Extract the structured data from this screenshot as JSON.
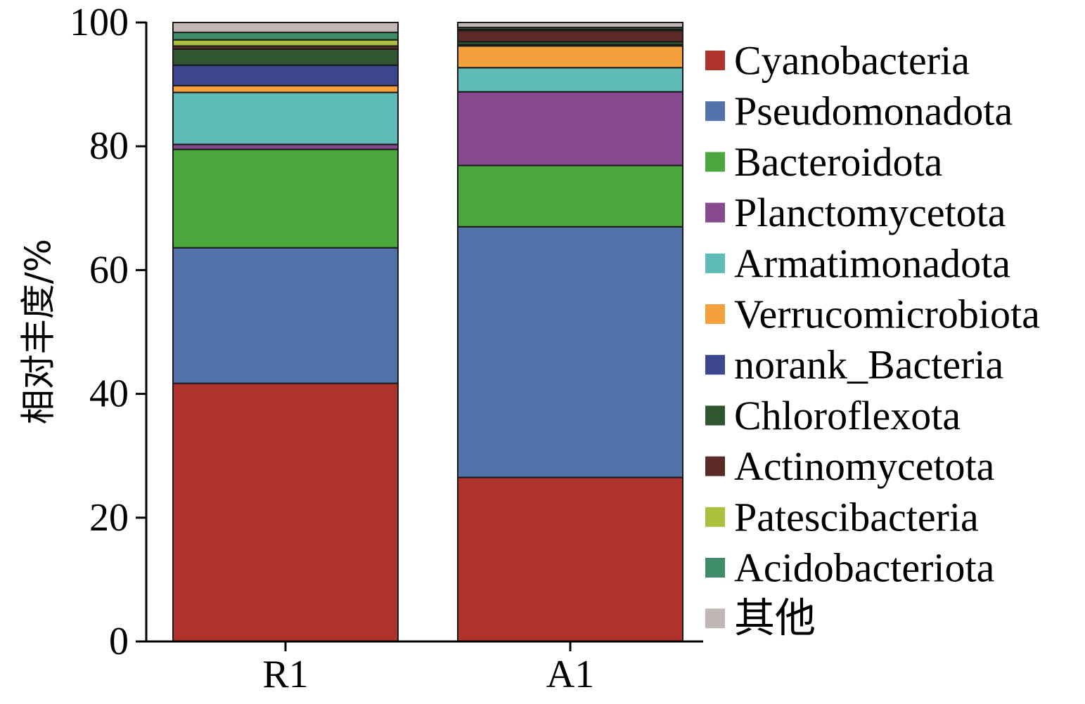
{
  "chart_data": {
    "type": "bar",
    "stacked": true,
    "title": "",
    "xlabel": "",
    "ylabel": "相对丰度/%",
    "ylim": [
      0,
      100
    ],
    "yticks": [
      0,
      20,
      40,
      60,
      80,
      100
    ],
    "categories": [
      "R1",
      "A1"
    ],
    "legend_position": "right",
    "series": [
      {
        "name": "Cyanobacteria",
        "color": "#b0322c",
        "values": [
          41.7,
          26.5
        ]
      },
      {
        "name": "Pseudomonadota",
        "color": "#5272aa",
        "values": [
          21.9,
          40.5
        ]
      },
      {
        "name": "Bacteroidota",
        "color": "#4ba63d",
        "values": [
          15.9,
          9.9
        ]
      },
      {
        "name": "Planctomycetota",
        "color": "#874a8f",
        "values": [
          0.8,
          11.9
        ]
      },
      {
        "name": "Armatimonadota",
        "color": "#5fbbb8",
        "values": [
          8.4,
          3.9
        ]
      },
      {
        "name": "Verrucomicrobiota",
        "color": "#f4a03c",
        "values": [
          1.1,
          3.5
        ]
      },
      {
        "name": "norank_Bacteria",
        "color": "#3d4790",
        "values": [
          3.3,
          0.2
        ]
      },
      {
        "name": "Chloroflexota",
        "color": "#2f5630",
        "values": [
          2.6,
          0.5
        ]
      },
      {
        "name": "Actinomycetota",
        "color": "#5c2b27",
        "values": [
          0.5,
          1.8
        ]
      },
      {
        "name": "Patescibacteria",
        "color": "#a9c13c",
        "values": [
          1.0,
          0.2
        ]
      },
      {
        "name": "Acidobacteriota",
        "color": "#3f8c68",
        "values": [
          1.2,
          0.3
        ]
      },
      {
        "name": "其他",
        "color": "#c1b8b5",
        "values": [
          1.6,
          0.8
        ]
      }
    ]
  }
}
